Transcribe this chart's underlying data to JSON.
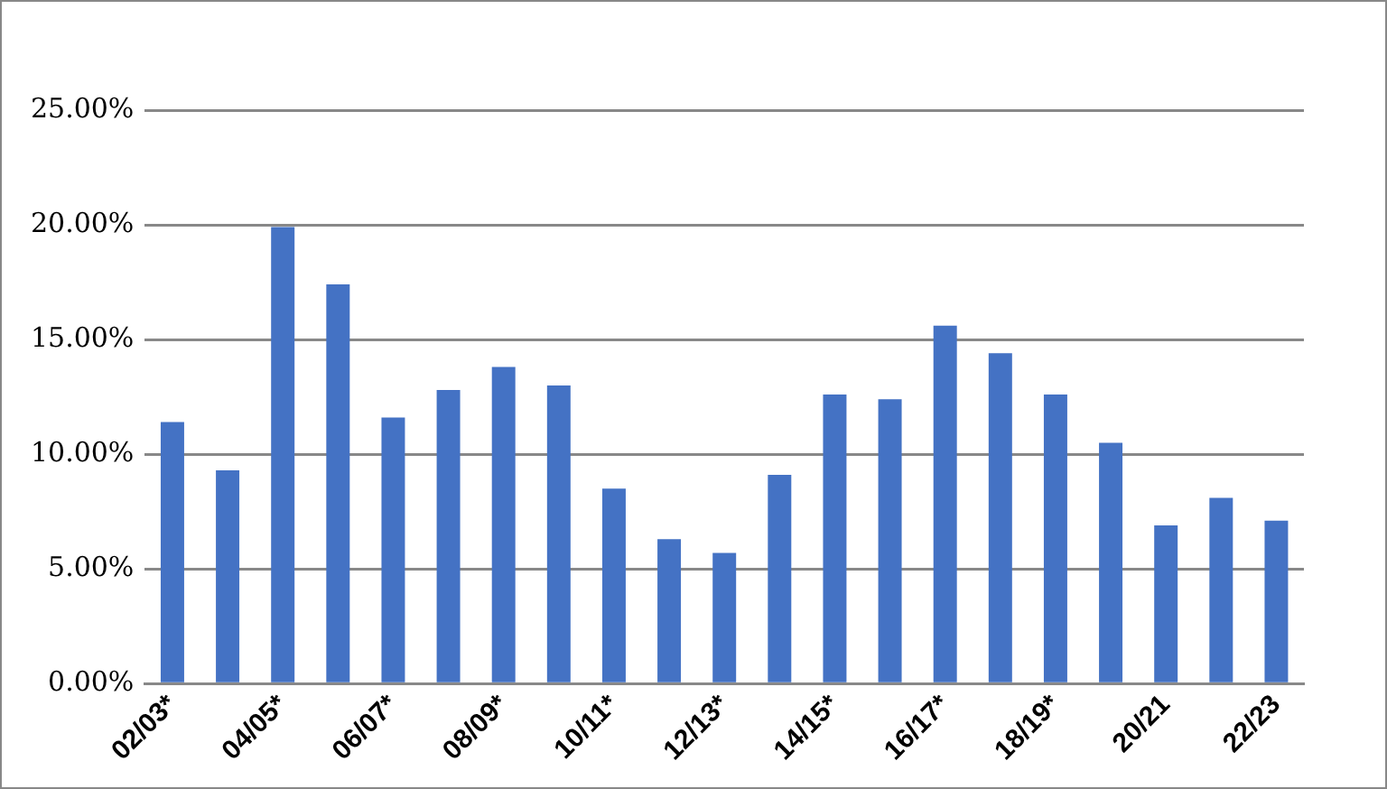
{
  "chart_data": {
    "type": "bar",
    "categories": [
      "02/03*",
      null,
      "04/05*",
      null,
      "06/07*",
      null,
      "08/09*",
      null,
      "10/11*",
      null,
      "12/13*",
      null,
      "14/15*",
      null,
      "16/17*",
      null,
      "18/19*",
      null,
      "20/21",
      null,
      "22/23"
    ],
    "values": [
      11.4,
      9.3,
      19.9,
      17.4,
      11.6,
      12.8,
      13.8,
      13.0,
      8.5,
      6.3,
      5.7,
      9.1,
      12.6,
      12.4,
      15.6,
      14.4,
      12.6,
      10.5,
      6.9,
      8.1,
      7.1
    ],
    "color": "#4472c4",
    "ylim": [
      0,
      25
    ],
    "yticks": [
      {
        "value": 0,
        "label": "0.00%"
      },
      {
        "value": 5,
        "label": "5.00%"
      },
      {
        "value": 10,
        "label": "10.00%"
      },
      {
        "value": 15,
        "label": "15.00%"
      },
      {
        "value": 20,
        "label": "20.00%"
      },
      {
        "value": 25,
        "label": "25.00%"
      }
    ],
    "grid": "y",
    "legend": false
  }
}
